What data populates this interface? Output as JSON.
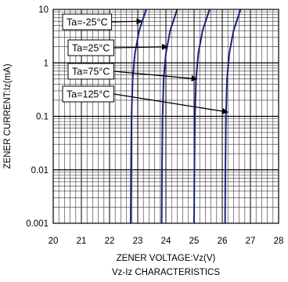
{
  "chart_data": {
    "type": "line",
    "title": "Vz-Iz CHARACTERISTICS",
    "xlabel": "ZENER VOLTAGE:Vz(V)",
    "ylabel": "ZENER CURRENT:Iz(mA)",
    "xlim": [
      20,
      28
    ],
    "ylim": [
      0.001,
      10
    ],
    "yscale": "log",
    "grid": true,
    "x_ticks": [
      "20",
      "21",
      "22",
      "23",
      "24",
      "25",
      "26",
      "27",
      "28"
    ],
    "y_ticks": [
      "0.001",
      "0.01",
      "0.1",
      "1",
      "10"
    ],
    "series": [
      {
        "name": "Ta=-25°C",
        "x": [
          22.75,
          22.76,
          22.78,
          22.82,
          22.9,
          23.05,
          23.3
        ],
        "y": [
          0.001,
          0.01,
          0.1,
          0.5,
          1.5,
          4,
          10
        ]
      },
      {
        "name": "Ta=25°C",
        "x": [
          23.85,
          23.86,
          23.88,
          23.92,
          24.0,
          24.15,
          24.4
        ],
        "y": [
          0.001,
          0.01,
          0.1,
          0.5,
          1.5,
          4,
          10
        ]
      },
      {
        "name": "Ta=75°C",
        "x": [
          25.0,
          25.01,
          25.03,
          25.07,
          25.15,
          25.3,
          25.55
        ],
        "y": [
          0.001,
          0.01,
          0.1,
          0.5,
          1.5,
          4,
          10
        ]
      },
      {
        "name": "Ta=125°C",
        "x": [
          26.1,
          26.11,
          26.13,
          26.17,
          26.25,
          26.4,
          26.65
        ],
        "y": [
          0.001,
          0.01,
          0.1,
          0.5,
          1.5,
          4,
          10
        ]
      }
    ],
    "annotations": [
      {
        "text": "Ta=-25°C",
        "points_to": [
          23.15,
          6
        ]
      },
      {
        "text": "Ta=25°C",
        "points_to": [
          24.05,
          2
        ]
      },
      {
        "text": "Ta=75°C",
        "points_to": [
          25.1,
          0.5
        ]
      },
      {
        "text": "Ta=125°C",
        "points_to": [
          26.2,
          0.12
        ]
      }
    ]
  }
}
